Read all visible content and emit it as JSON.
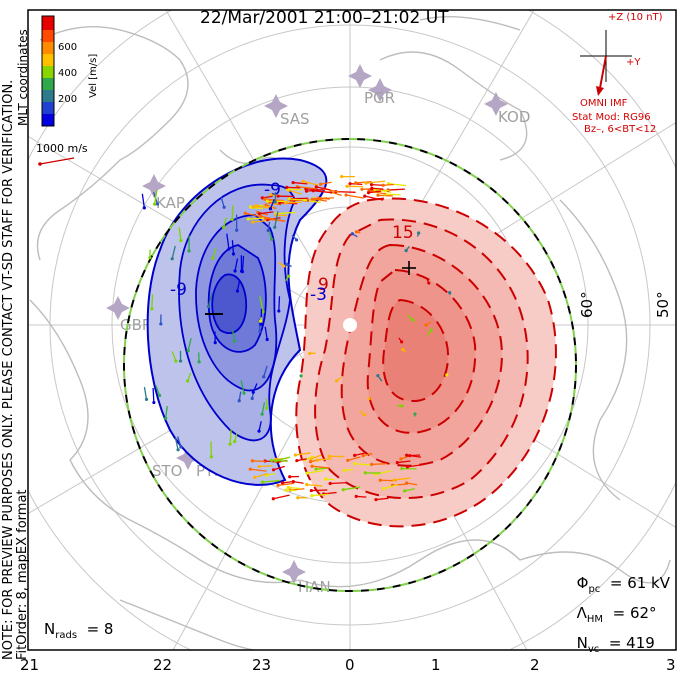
{
  "title": "22/Mar/2001 21:00–21:02 UT",
  "side_text_1": "NOTE: FOR PREVIEW PURPOSES ONLY. PLEASE CONTACT VT-SD STAFF FOR VERIFICATION.",
  "side_text_2": "FitOrder: 8, mapEX format",
  "mlt_coordinates_label": "MLT coordinates",
  "velocity_scale": {
    "label": "Vel [m/s]",
    "ticks": [
      "600",
      "400",
      "200"
    ],
    "colors": [
      "#e60000",
      "#ff6a00",
      "#ffb000",
      "#e8e800",
      "#7ad400",
      "#2fa84a",
      "#2c7a8c",
      "#3050c8",
      "#0000e0"
    ]
  },
  "vector_scale_label": "1000 m/s",
  "imf": {
    "z_label": "+Z (10 nT)",
    "y_label": "+Y",
    "source_label": "OMNI IMF",
    "model_label": "Stat Mod: RG96",
    "model_condition": "Bz–, 6<BT<12"
  },
  "stations": [
    "PGR",
    "SAS",
    "KOD",
    "KAP",
    "STO",
    "PYK",
    "HAN",
    "GBR"
  ],
  "latitude_labels": [
    "60°",
    "50°"
  ],
  "mlt_ticks": [
    "21",
    "22",
    "23",
    "0",
    "1",
    "2",
    "3"
  ],
  "contour_labels": [
    "-9",
    "-9",
    "9",
    "15",
    "-3"
  ],
  "stats": {
    "phi_pc_symbol": "Φ",
    "phi_pc_sub": "pc",
    "phi_pc_value": "61 kV",
    "lambda_symbol": "Λ",
    "lambda_sub": "HM",
    "lambda_value": "62°",
    "nvc_symbol": "N",
    "nvc_sub": "vc",
    "nvc_value": "419",
    "nrads_symbol": "N",
    "nrads_sub": "rads",
    "nrads_value": "8"
  },
  "colors": {
    "negative_cell": "#0000cc",
    "negative_fill": "#aab0e6",
    "positive_cell": "#cc0000",
    "positive_fill": "#f2b0aa",
    "boundary_dash_a": "#000000",
    "boundary_dash_b": "#7fd04a",
    "coastline": "#bfbfbf",
    "grid": "#c8c8c8",
    "imf_color": "#d40000"
  }
}
